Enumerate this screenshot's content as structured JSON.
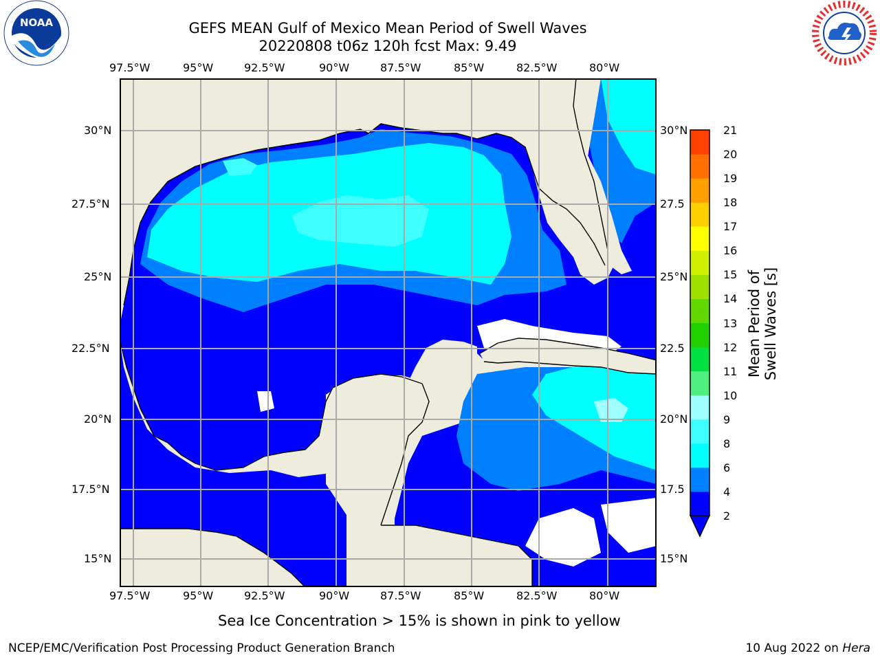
{
  "header": {
    "title": "GEFS MEAN Gulf of Mexico Mean Period of Swell Waves",
    "subtitle": "20220808 t06z 120h fcst   Max: 9.49"
  },
  "logos": {
    "left": {
      "icon": "noaa-logo",
      "text": "NOAA",
      "ring_text": "NATIONAL OCEANIC AND ATMOSPHERIC ADMINISTRATION · U.S. DEPARTMENT OF COMMERCE"
    },
    "right": {
      "icon": "nws-logo",
      "ring_text": "NATIONAL WEATHER SERVICE"
    }
  },
  "map": {
    "lon_labels": [
      "97.5°W",
      "95°W",
      "92.5°W",
      "90°W",
      "87.5°W",
      "85°W",
      "82.5°W",
      "80°W"
    ],
    "lat_labels": [
      "30°N",
      "27.5°N",
      "25°N",
      "22.5°N",
      "20°N",
      "17.5°N",
      "15°N"
    ],
    "lat_labels_right": [
      "30°N",
      "27.5",
      "25°N",
      "22.5",
      "20°N",
      "17.5",
      "15°N"
    ],
    "colors": {
      "land": "#eeecdc",
      "grid": "#aaaaaa",
      "coast": "#000000"
    }
  },
  "colorbar": {
    "label": "Mean Period of Swell Waves [s]",
    "ticks": [
      "21",
      "20",
      "19",
      "18",
      "17",
      "16",
      "15",
      "14",
      "13",
      "12",
      "11",
      "10",
      "9",
      "8",
      "6",
      "4",
      "2"
    ],
    "levels": [
      2,
      4,
      6,
      8,
      9,
      10,
      11,
      12,
      13,
      14,
      15,
      16,
      17,
      18,
      19,
      20,
      21
    ],
    "colors": [
      "#0000ff",
      "#0080ff",
      "#00ffff",
      "#40ffff",
      "#a0ffff",
      "#50f080",
      "#00e040",
      "#20d000",
      "#60d800",
      "#a0e000",
      "#d0f000",
      "#ffff00",
      "#ffd000",
      "#ffa000",
      "#ff7000",
      "#ff4000",
      "#ff0000"
    ]
  },
  "notes": {
    "ice": "Sea Ice Concentration > 15% is shown in pink to yellow"
  },
  "footer": {
    "left": "NCEP/EMC/Verification Post Processing Product Generation Branch",
    "right_date": "10 Aug 2022 on ",
    "right_host": "Hera"
  }
}
